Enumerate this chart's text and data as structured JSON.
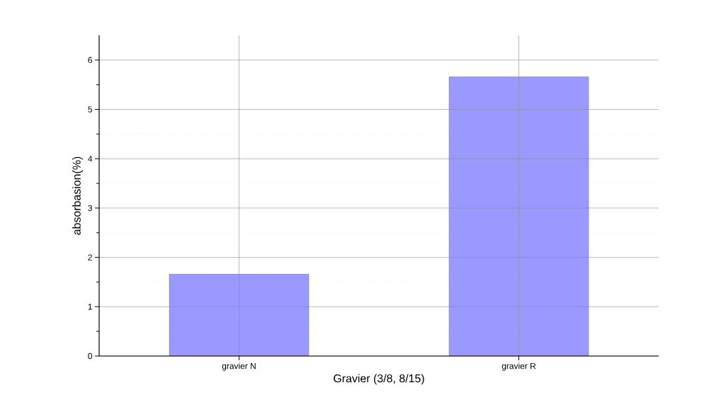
{
  "chart_data": {
    "type": "bar",
    "xlabel": "Gravier (3/8, 8/15)",
    "ylabel": "absorbasion(%)",
    "categories": [
      "gravier N",
      "gravier R"
    ],
    "values": [
      1.66,
      5.66
    ],
    "color": "#9999ff",
    "ylim": [
      0,
      6.5
    ],
    "yticks": [
      0,
      1,
      2,
      3,
      4,
      5,
      6
    ],
    "grid": true
  }
}
